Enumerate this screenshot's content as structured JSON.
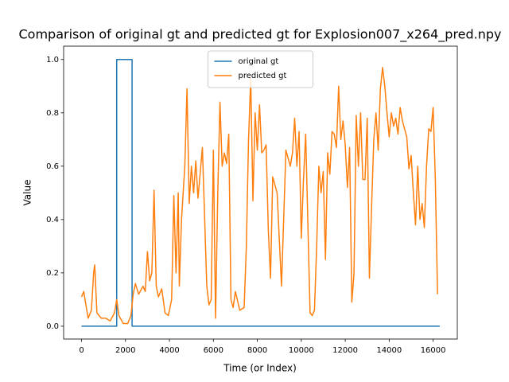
{
  "chart_data": {
    "type": "line",
    "title": "Comparison of original gt and predicted gt for Explosion007_x264_pred.npy",
    "x_label": "Time (or Index)",
    "y_label": "Value",
    "xlim": [
      -815,
      17100
    ],
    "ylim": [
      -0.048,
      1.05
    ],
    "xticks": [
      0,
      2000,
      4000,
      6000,
      8000,
      10000,
      12000,
      14000,
      16000
    ],
    "yticks": [
      {
        "value": 0,
        "label": "0.0"
      },
      0.2,
      0.4,
      0.6,
      0.8,
      {
        "value": 1,
        "label": "1.0"
      }
    ],
    "legend": "upper center",
    "series": [
      {
        "name": "original gt",
        "color": "#1f77b4",
        "x": [
          0,
          1600,
          1600,
          2300,
          2300,
          16300
        ],
        "values": [
          0,
          0,
          1,
          1,
          0,
          0
        ]
      },
      {
        "name": "predicted gt",
        "color": "#ff7f0e",
        "x": [
          0,
          100,
          300,
          450,
          550,
          600,
          700,
          900,
          1100,
          1300,
          1500,
          1600,
          1700,
          1900,
          2100,
          2250,
          2350,
          2450,
          2600,
          2800,
          2900,
          3000,
          3100,
          3200,
          3300,
          3400,
          3500,
          3650,
          3800,
          3950,
          4100,
          4200,
          4300,
          4400,
          4450,
          4550,
          4700,
          4800,
          4900,
          5000,
          5100,
          5200,
          5300,
          5500,
          5700,
          5800,
          5900,
          6000,
          6100,
          6200,
          6300,
          6400,
          6500,
          6600,
          6700,
          6800,
          6900,
          7000,
          7200,
          7400,
          7500,
          7600,
          7700,
          7800,
          7900,
          8000,
          8100,
          8200,
          8300,
          8400,
          8500,
          8600,
          8700,
          8900,
          9100,
          9300,
          9500,
          9600,
          9700,
          9800,
          9900,
          10000,
          10100,
          10200,
          10400,
          10500,
          10600,
          10700,
          10800,
          10900,
          11000,
          11100,
          11200,
          11300,
          11400,
          11500,
          11600,
          11700,
          11800,
          11900,
          12000,
          12100,
          12200,
          12300,
          12400,
          12500,
          12600,
          12700,
          12800,
          12900,
          13000,
          13100,
          13200,
          13300,
          13400,
          13500,
          13600,
          13700,
          13800,
          13900,
          14000,
          14100,
          14200,
          14300,
          14400,
          14500,
          14600,
          14800,
          14900,
          15000,
          15100,
          15200,
          15300,
          15400,
          15500,
          15600,
          15700,
          15800,
          15900,
          16000,
          16100,
          16200
        ],
        "values": [
          0.11,
          0.13,
          0.03,
          0.06,
          0.2,
          0.23,
          0.05,
          0.03,
          0.03,
          0.02,
          0.05,
          0.1,
          0.04,
          0.01,
          0.01,
          0.04,
          0.12,
          0.16,
          0.12,
          0.15,
          0.13,
          0.28,
          0.17,
          0.2,
          0.51,
          0.15,
          0.11,
          0.14,
          0.05,
          0.04,
          0.1,
          0.49,
          0.2,
          0.5,
          0.15,
          0.4,
          0.6,
          0.89,
          0.46,
          0.6,
          0.5,
          0.62,
          0.48,
          0.67,
          0.15,
          0.08,
          0.1,
          0.66,
          0.03,
          0.5,
          0.84,
          0.6,
          0.65,
          0.61,
          0.72,
          0.1,
          0.07,
          0.13,
          0.06,
          0.07,
          0.3,
          0.7,
          0.93,
          0.47,
          0.8,
          0.66,
          0.83,
          0.65,
          0.66,
          0.68,
          0.36,
          0.18,
          0.56,
          0.5,
          0.15,
          0.66,
          0.6,
          0.65,
          0.78,
          0.6,
          0.73,
          0.33,
          0.55,
          0.72,
          0.05,
          0.04,
          0.06,
          0.3,
          0.6,
          0.5,
          0.58,
          0.25,
          0.65,
          0.57,
          0.73,
          0.72,
          0.67,
          0.9,
          0.7,
          0.77,
          0.68,
          0.52,
          0.67,
          0.09,
          0.2,
          0.79,
          0.6,
          0.8,
          0.55,
          0.55,
          0.78,
          0.18,
          0.45,
          0.7,
          0.8,
          0.66,
          0.89,
          0.97,
          0.9,
          0.8,
          0.71,
          0.8,
          0.75,
          0.78,
          0.72,
          0.82,
          0.77,
          0.71,
          0.59,
          0.64,
          0.5,
          0.38,
          0.6,
          0.4,
          0.46,
          0.37,
          0.6,
          0.74,
          0.73,
          0.82,
          0.55,
          0.12
        ]
      }
    ]
  }
}
